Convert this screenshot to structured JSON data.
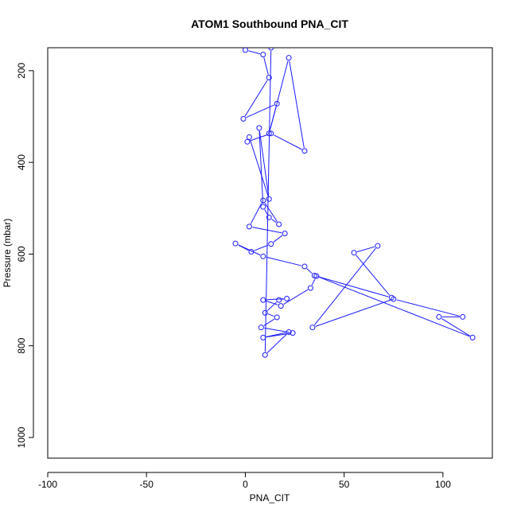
{
  "chart_data": {
    "type": "line",
    "title": "ATOM1 Southbound PNA_CIT",
    "xlabel": "PNA_CIT",
    "ylabel": "Pressure (mbar)",
    "xlim": [
      -100,
      125
    ],
    "ylim": [
      1045,
      150
    ],
    "y_reversed": true,
    "xticks": [
      -100,
      -50,
      0,
      50,
      100
    ],
    "yticks": [
      200,
      400,
      600,
      800,
      1000
    ],
    "grid": false,
    "series_color": "#1a1aff",
    "series": [
      {
        "style": "points-and-lines",
        "x": [
          0,
          9,
          12,
          -1,
          16,
          12,
          22,
          30,
          13,
          1,
          2,
          12,
          7,
          9,
          12,
          17,
          9,
          2,
          20,
          13,
          3,
          -5,
          9,
          30,
          35,
          74,
          55,
          67,
          34,
          75,
          110,
          98,
          115,
          36,
          33,
          18,
          9,
          21,
          17,
          10,
          16,
          8,
          24,
          9,
          22,
          10,
          13
        ],
        "y": [
          155,
          165,
          215,
          305,
          272,
          337,
          172,
          375,
          337,
          355,
          345,
          480,
          325,
          497,
          520,
          535,
          483,
          540,
          555,
          578,
          595,
          577,
          605,
          627,
          647,
          695,
          597,
          582,
          760,
          698,
          737,
          737,
          782,
          648,
          674,
          713,
          700,
          697,
          700,
          728,
          738,
          760,
          772,
          782,
          770,
          820,
          150
        ]
      }
    ]
  }
}
